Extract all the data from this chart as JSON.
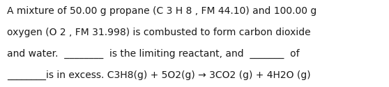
{
  "lines": [
    "A mixture of 50.00 g propane (C 3 H 8 , FM 44.10) and 100.00 g",
    "oxygen (O 2 , FM 31.998) is combusted to form carbon dioxide",
    "and water.  ________  is the limiting reactant, and  _______  of",
    "________is in excess. C3H8(g) + 5O2(g) → 3CO2 (g) + 4H2O (g)"
  ],
  "bg_color": "#ffffff",
  "text_color": "#1a1a1a",
  "font_size": 10.0,
  "fig_width": 5.58,
  "fig_height": 1.26,
  "dpi": 100
}
